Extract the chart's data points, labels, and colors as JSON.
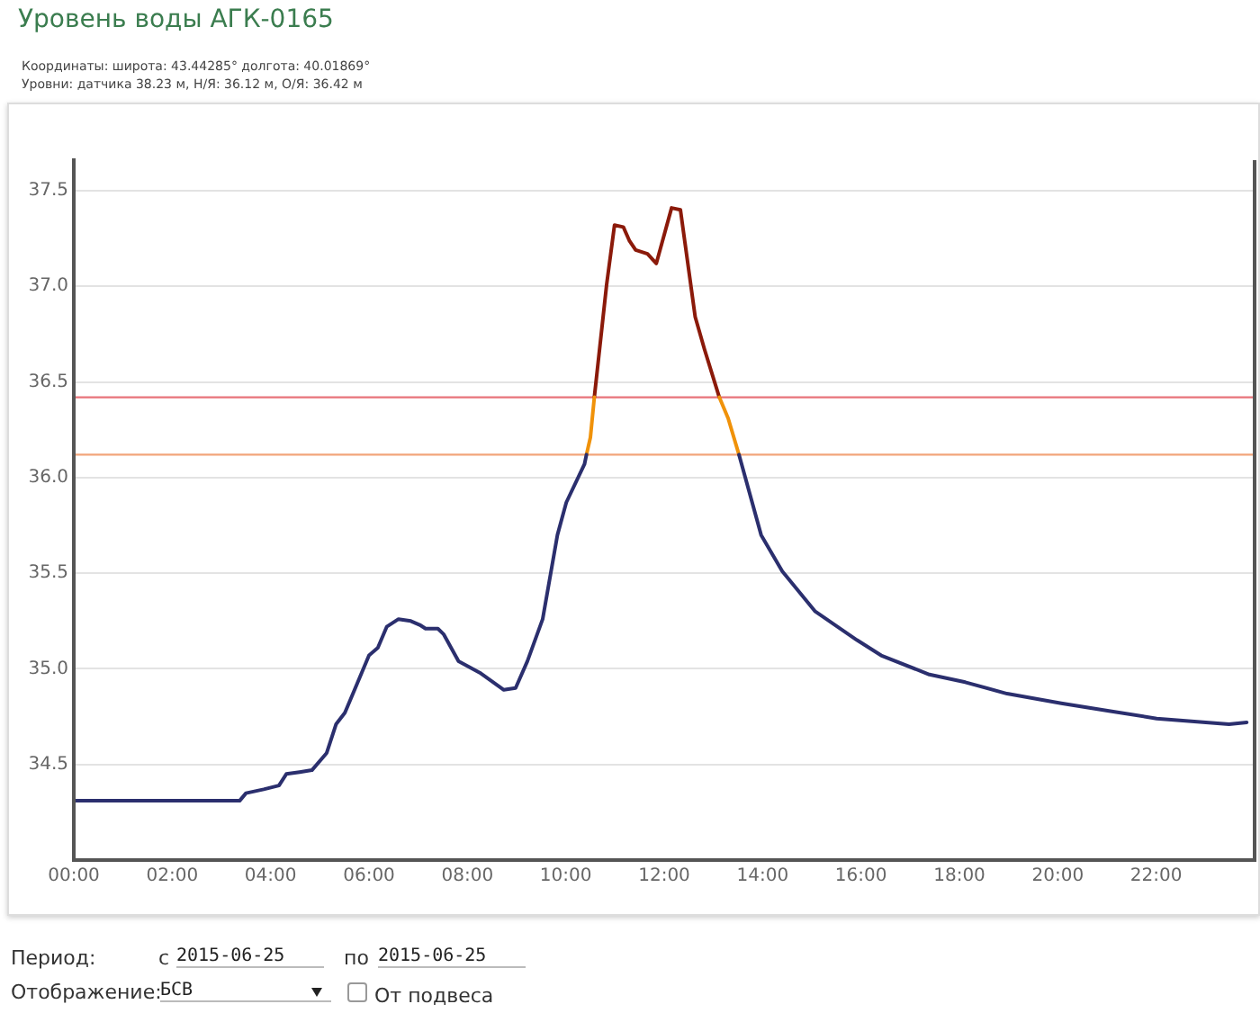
{
  "chart_data": {
    "type": "line",
    "title": "Уровень воды АГК-0165",
    "subtitle": "Координаты: широта: 43.44285° долгота: 40.01869°\nУровни: датчика 38.23 м, Н/Я: 36.12 м, О/Я: 36.42 м",
    "x": [
      0,
      3.37,
      3.5,
      3.86,
      4.17,
      4.32,
      4.59,
      4.84,
      5.14,
      5.33,
      5.51,
      6.0,
      6.18,
      6.36,
      6.6,
      6.85,
      7.03,
      7.15,
      7.4,
      7.52,
      7.82,
      8.25,
      8.74,
      8.98,
      9.22,
      9.53,
      9.83,
      10.01,
      10.38,
      10.42,
      10.5,
      10.58,
      10.83,
      10.99,
      11.17,
      11.29,
      11.42,
      11.66,
      11.84,
      12.15,
      12.33,
      12.63,
      12.82,
      13.12,
      13.3,
      13.52,
      13.97,
      14.4,
      15.07,
      15.92,
      16.41,
      17.39,
      18.12,
      18.97,
      20.07,
      21.04,
      22.01,
      23.48,
      23.84
    ],
    "series": [
      {
        "color": "#2b2f6e",
        "values": [
          34.31,
          34.31,
          34.35,
          34.37,
          34.39,
          34.45,
          34.46,
          34.47,
          34.56,
          34.71,
          34.77,
          35.07,
          35.11,
          35.22,
          35.26,
          35.25,
          35.23,
          35.21,
          35.21,
          35.18,
          35.04,
          34.98,
          34.89,
          34.9,
          35.04,
          35.26,
          35.7,
          35.87,
          36.07,
          36.12,
          null,
          null,
          null,
          null,
          null,
          null,
          null,
          null,
          null,
          null,
          null,
          null,
          null,
          null,
          null,
          36.12,
          35.7,
          35.51,
          35.3,
          35.15,
          35.07,
          34.97,
          34.93,
          34.87,
          34.82,
          34.78,
          34.74,
          34.71,
          34.72
        ]
      },
      {
        "color": "#f0920a",
        "values": [
          null,
          null,
          null,
          null,
          null,
          null,
          null,
          null,
          null,
          null,
          null,
          null,
          null,
          null,
          null,
          null,
          null,
          null,
          null,
          null,
          null,
          null,
          null,
          null,
          null,
          null,
          null,
          null,
          null,
          36.12,
          36.21,
          36.42,
          null,
          null,
          null,
          null,
          null,
          null,
          null,
          null,
          null,
          null,
          null,
          36.42,
          36.31,
          36.12,
          null,
          null,
          null,
          null,
          null,
          null,
          null,
          null,
          null,
          null,
          null,
          null,
          null
        ]
      },
      {
        "color": "#8b1a0a",
        "values": [
          null,
          null,
          null,
          null,
          null,
          null,
          null,
          null,
          null,
          null,
          null,
          null,
          null,
          null,
          null,
          null,
          null,
          null,
          null,
          null,
          null,
          null,
          null,
          null,
          null,
          null,
          null,
          null,
          null,
          null,
          null,
          36.42,
          37.01,
          37.32,
          37.31,
          37.24,
          37.19,
          37.17,
          37.12,
          37.41,
          37.4,
          36.84,
          36.67,
          36.42,
          null,
          null,
          null,
          null,
          null,
          null,
          null,
          null,
          null,
          null,
          null,
          null,
          null,
          null,
          null
        ]
      }
    ],
    "xlim": [
      0,
      24
    ],
    "xticks": [
      {
        "value": 0,
        "label": "00:00"
      },
      {
        "value": 2,
        "label": "02:00"
      },
      {
        "value": 4,
        "label": "04:00"
      },
      {
        "value": 6,
        "label": "06:00"
      },
      {
        "value": 8,
        "label": "08:00"
      },
      {
        "value": 10,
        "label": "10:00"
      },
      {
        "value": 12,
        "label": "12:00"
      },
      {
        "value": 14,
        "label": "14:00"
      },
      {
        "value": 16,
        "label": "16:00"
      },
      {
        "value": 18,
        "label": "18:00"
      },
      {
        "value": 20,
        "label": "20:00"
      },
      {
        "value": 22,
        "label": "22:00"
      }
    ],
    "ylim": [
      34,
      37.66
    ],
    "yticks": [
      34.5,
      {
        "value": 35,
        "label": "35.0"
      },
      35.5,
      {
        "value": 36,
        "label": "36.0"
      },
      36.5,
      {
        "value": 37,
        "label": "37.0"
      },
      37.5
    ],
    "ref_lines": [
      {
        "axis": "y",
        "value": 36.42,
        "color": "#e8737a"
      },
      {
        "axis": "y",
        "value": 36.12,
        "color": "#f2a57a"
      }
    ],
    "grid": "y",
    "marker": "none",
    "line_style": "solid",
    "legend": false,
    "annotations": [
      "Период:",
      "с",
      "2015-06-25",
      "по",
      "2015-06-25",
      "Отображение:",
      "БСВ",
      "От подвеса"
    ]
  }
}
